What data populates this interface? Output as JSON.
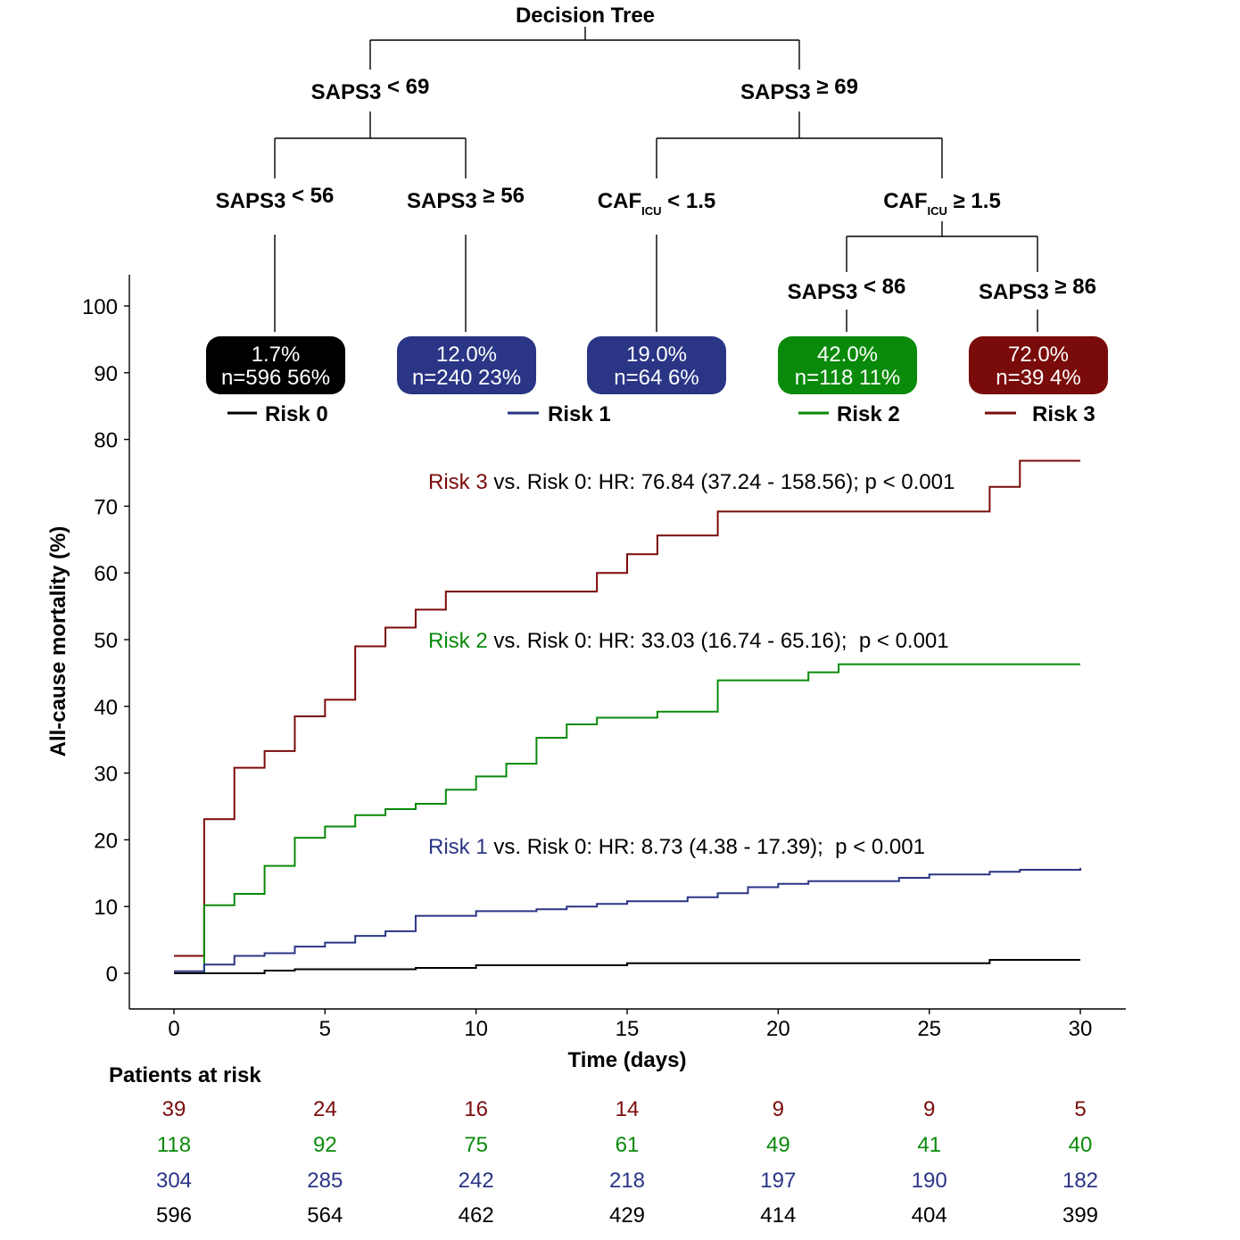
{
  "tree": {
    "title": "Decision Tree",
    "level1": [
      {
        "base": "SAPS3",
        "op": "< 69",
        "sub": ""
      },
      {
        "base": "SAPS3",
        "op": "≥ 69",
        "sub": ""
      }
    ],
    "level2": [
      {
        "base": "SAPS3",
        "op": "< 56",
        "sub": ""
      },
      {
        "base": "SAPS3",
        "op": "≥ 56",
        "sub": ""
      },
      {
        "base": "CAF",
        "op": "< 1.5",
        "sub": "ICU"
      },
      {
        "base": "CAF",
        "op": "≥ 1.5",
        "sub": "ICU"
      }
    ],
    "level3": [
      {
        "base": "SAPS3",
        "op": "< 86",
        "sub": ""
      },
      {
        "base": "SAPS3",
        "op": "≥ 86",
        "sub": ""
      }
    ],
    "leaves": [
      {
        "pct": "1.7%",
        "n": "n=596",
        "share": "56%",
        "color": "#000000"
      },
      {
        "pct": "12.0%",
        "n": "n=240",
        "share": "23%",
        "color": "#2a3585"
      },
      {
        "pct": "19.0%",
        "n": "n=64",
        "share": "6%",
        "color": "#2a3585"
      },
      {
        "pct": "42.0%",
        "n": "n=118",
        "share": "11%",
        "color": "#0a8a0a"
      },
      {
        "pct": "72.0%",
        "n": "n=39",
        "share": "4%",
        "color": "#7a0b0b"
      }
    ]
  },
  "legend": [
    {
      "label": "Risk 0",
      "color": "#000000"
    },
    {
      "label": "Risk 1",
      "color": "#2a3585"
    },
    {
      "label": "Risk 2",
      "color": "#0a8a0a"
    },
    {
      "label": "Risk 3",
      "color": "#7a0b0b"
    }
  ],
  "annotations": [
    {
      "risk": "Risk 3",
      "text": " vs. Risk 0: HR: 76.84 (37.24 - 158.56); p < 0.001",
      "color": "#7a0b0b"
    },
    {
      "risk": "Risk 2",
      "text": " vs. Risk 0: HR: 33.03 (16.74 - 65.16);  p < 0.001",
      "color": "#0a8a0a"
    },
    {
      "risk": "Risk 1",
      "text": " vs. Risk 0: HR: 8.73 (4.38 - 17.39);  p < 0.001",
      "color": "#2a3585"
    }
  ],
  "chart_data": {
    "type": "line",
    "step": true,
    "xlabel": "Time (days)",
    "ylabel": "All-cause mortality (%)",
    "xlim": [
      0,
      30
    ],
    "ylim": [
      0,
      100
    ],
    "xticks": [
      0,
      5,
      10,
      15,
      20,
      25,
      30
    ],
    "yticks": [
      0,
      10,
      20,
      30,
      40,
      50,
      60,
      70,
      80,
      90,
      100
    ],
    "grid": false,
    "series": [
      {
        "name": "Risk 3",
        "color": "#7a0b0b",
        "x": [
          0,
          1,
          2,
          3,
          4,
          5,
          6,
          7,
          8,
          9,
          14,
          15,
          16,
          18,
          27,
          28,
          30
        ],
        "y": [
          2.6,
          23.1,
          30.8,
          33.3,
          38.5,
          41.0,
          49.0,
          51.8,
          54.5,
          57.2,
          60.0,
          62.8,
          65.6,
          69.2,
          72.9,
          76.8,
          76.8
        ]
      },
      {
        "name": "Risk 2",
        "color": "#0a8a0a",
        "x": [
          0,
          1,
          2,
          3,
          4,
          5,
          6,
          7,
          8,
          9,
          10,
          11,
          12,
          13,
          14,
          16,
          18,
          21,
          22,
          30
        ],
        "y": [
          0,
          10.2,
          11.9,
          16.1,
          20.3,
          22.0,
          23.7,
          24.6,
          25.4,
          27.5,
          29.5,
          31.4,
          35.3,
          37.3,
          38.3,
          39.2,
          43.9,
          45.1,
          46.3,
          46.3
        ]
      },
      {
        "name": "Risk 1",
        "color": "#2a3585",
        "x": [
          0,
          1,
          2,
          3,
          4,
          5,
          6,
          7,
          8,
          10,
          12,
          13,
          14,
          15,
          17,
          18,
          19,
          20,
          21,
          24,
          25,
          27,
          28,
          30
        ],
        "y": [
          0.3,
          1.3,
          2.6,
          3.0,
          4.0,
          4.6,
          5.6,
          6.3,
          8.6,
          9.3,
          9.6,
          10.0,
          10.4,
          10.8,
          11.4,
          12.0,
          12.9,
          13.4,
          13.8,
          14.3,
          14.8,
          15.2,
          15.5,
          15.8
        ]
      },
      {
        "name": "Risk 0",
        "color": "#000000",
        "x": [
          0,
          3,
          4,
          8,
          10,
          15,
          27,
          30
        ],
        "y": [
          0,
          0.4,
          0.6,
          0.8,
          1.2,
          1.5,
          2.0,
          2.0
        ]
      }
    ],
    "at_risk": {
      "title": "Patients at risk",
      "rows": [
        {
          "name": "Risk 3",
          "color": "#7a0b0b",
          "values": [
            39,
            24,
            16,
            14,
            9,
            9,
            5
          ]
        },
        {
          "name": "Risk 2",
          "color": "#0a8a0a",
          "values": [
            118,
            92,
            75,
            61,
            49,
            41,
            40
          ]
        },
        {
          "name": "Risk 1",
          "color": "#2a3585",
          "values": [
            304,
            285,
            242,
            218,
            197,
            190,
            182
          ]
        },
        {
          "name": "Risk 0",
          "color": "#000000",
          "values": [
            596,
            564,
            462,
            429,
            414,
            404,
            399
          ]
        }
      ]
    }
  }
}
